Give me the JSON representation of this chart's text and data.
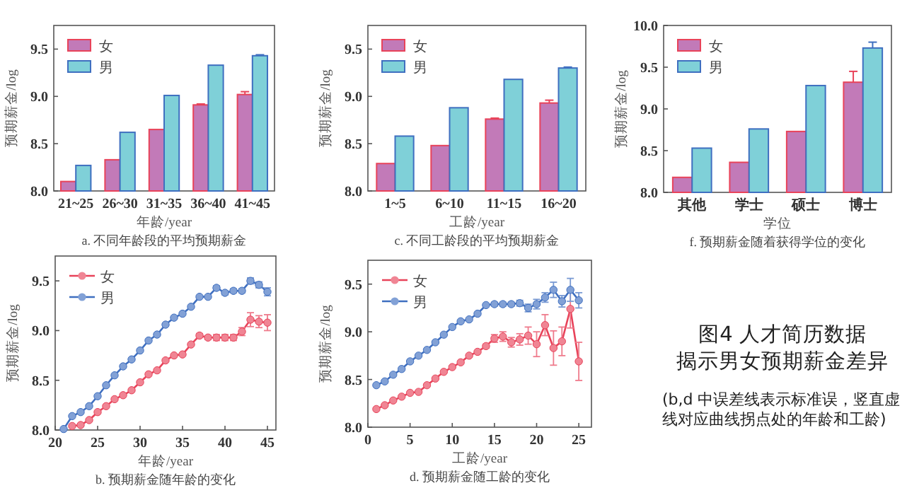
{
  "chart_data": [
    {
      "type": "bar",
      "title": "a. 不同年龄段的平均预期薪金",
      "xlabel": "年龄/year",
      "ylabel": "预期薪金/log",
      "categories": [
        "21~25",
        "26~30",
        "31~35",
        "36~40",
        "41~45"
      ],
      "legend": "top left",
      "ylim": [
        8.0,
        9.75
      ],
      "yticks": [
        {
          "value": 8,
          "label": "8.0"
        },
        {
          "value": 8.5,
          "label": "8.5"
        },
        {
          "value": 9,
          "label": "9.0"
        },
        {
          "value": 9.5,
          "label": "9.5"
        }
      ],
      "series": [
        {
          "name": "女",
          "color": "#c27ab8",
          "values": [
            8.1,
            8.33,
            8.65,
            8.91,
            9.02
          ],
          "errors": [
            null,
            null,
            null,
            0.01,
            0.03
          ]
        },
        {
          "name": "男",
          "color": "#7fd0d8",
          "values": [
            8.27,
            8.62,
            9.01,
            9.33,
            9.43
          ],
          "errors": [
            null,
            null,
            null,
            null,
            0.01
          ]
        }
      ]
    },
    {
      "type": "bar",
      "title": "c. 不同工龄段的平均预期薪金",
      "xlabel": "工龄/year",
      "ylabel": "预期薪金/log",
      "categories": [
        "1~5",
        "6~10",
        "11~15",
        "16~20"
      ],
      "legend": "top left",
      "ylim": [
        8.0,
        9.75
      ],
      "yticks": [
        {
          "value": 8,
          "label": "8.0"
        },
        {
          "value": 8.5,
          "label": "8.5"
        },
        {
          "value": 9,
          "label": "9.0"
        },
        {
          "value": 9.5,
          "label": "9.5"
        }
      ],
      "series": [
        {
          "name": "女",
          "color": "#c27ab8",
          "values": [
            8.29,
            8.48,
            8.76,
            8.93
          ],
          "errors": [
            null,
            null,
            0.01,
            0.03
          ]
        },
        {
          "name": "男",
          "color": "#7fd0d8",
          "values": [
            8.58,
            8.88,
            9.18,
            9.3
          ],
          "errors": [
            null,
            null,
            null,
            0.01
          ]
        }
      ]
    },
    {
      "type": "bar",
      "title": "f. 预期薪金随着获得学位的变化",
      "xlabel": "学位",
      "ylabel": "预期薪金/log",
      "categories": [
        "其他",
        "学士",
        "硕士",
        "博士"
      ],
      "legend": "top left",
      "ylim": [
        8.0,
        10.0
      ],
      "yticks": [
        {
          "value": 8,
          "label": "8.0"
        },
        {
          "value": 8.5,
          "label": "8.5"
        },
        {
          "value": 9,
          "label": "9.0"
        },
        {
          "value": 9.5,
          "label": "9.5"
        },
        {
          "value": 10,
          "label": "10.0"
        }
      ],
      "series": [
        {
          "name": "女",
          "color": "#c27ab8",
          "values": [
            8.18,
            8.36,
            8.73,
            9.32
          ],
          "errors": [
            null,
            null,
            null,
            0.13
          ]
        },
        {
          "name": "男",
          "color": "#7fd0d8",
          "values": [
            8.53,
            8.76,
            9.28,
            9.73
          ],
          "errors": [
            null,
            null,
            null,
            0.07
          ]
        }
      ]
    },
    {
      "type": "line",
      "title": "b. 预期薪金随年龄的变化",
      "xlabel": "年龄/year",
      "ylabel": "预期薪金/log",
      "legend": "top left",
      "marker": "circle",
      "xlim": [
        20,
        46
      ],
      "xticks": [
        20,
        25,
        30,
        35,
        40,
        45
      ],
      "ylim": [
        8.0,
        9.75
      ],
      "yticks": [
        {
          "value": 8,
          "label": "8.0"
        },
        {
          "value": 8.5,
          "label": "8.5"
        },
        {
          "value": 9,
          "label": "9.0"
        },
        {
          "value": 9.5,
          "label": "9.5"
        }
      ],
      "x": [
        21,
        22,
        23,
        24,
        25,
        26,
        27,
        28,
        29,
        30,
        31,
        32,
        33,
        34,
        35,
        36,
        37,
        38,
        39,
        40,
        41,
        42,
        43,
        44,
        45
      ],
      "series": [
        {
          "name": "女",
          "color": "#e8435a",
          "values": [
            null,
            8.04,
            8.05,
            8.1,
            8.18,
            8.24,
            8.31,
            8.35,
            8.4,
            8.48,
            8.56,
            8.6,
            8.7,
            8.75,
            8.76,
            8.86,
            8.95,
            8.93,
            8.93,
            8.93,
            8.93,
            8.99,
            9.11,
            9.09,
            9.08
          ],
          "errors": [
            null,
            null,
            null,
            null,
            null,
            null,
            null,
            null,
            null,
            null,
            null,
            null,
            null,
            null,
            null,
            null,
            0.02,
            0.02,
            0.03,
            0.03,
            0.03,
            0.04,
            0.07,
            0.06,
            0.08
          ]
        },
        {
          "name": "男",
          "color": "#3f6fc0",
          "values": [
            8.01,
            8.14,
            8.18,
            8.24,
            8.34,
            8.45,
            8.55,
            8.64,
            8.71,
            8.8,
            8.9,
            8.96,
            9.06,
            9.13,
            9.17,
            9.24,
            9.34,
            9.34,
            9.43,
            9.38,
            9.4,
            9.4,
            9.5,
            9.46,
            9.39
          ],
          "errors": [
            null,
            null,
            null,
            null,
            null,
            null,
            null,
            null,
            null,
            null,
            null,
            null,
            null,
            null,
            null,
            null,
            null,
            null,
            0.02,
            0.02,
            0.02,
            0.02,
            0.03,
            0.03,
            0.04
          ]
        }
      ]
    },
    {
      "type": "line",
      "title": "d. 预期薪金随工龄的变化",
      "xlabel": "工龄/year",
      "ylabel": "预期薪金/log",
      "legend": "top left",
      "marker": "circle",
      "xlim": [
        0,
        26.5
      ],
      "xticks": [
        0,
        5,
        10,
        15,
        20,
        25
      ],
      "ylim": [
        8.0,
        9.75
      ],
      "yticks": [
        {
          "value": 8,
          "label": "8.0"
        },
        {
          "value": 8.5,
          "label": "8.5"
        },
        {
          "value": 9,
          "label": "9.0"
        },
        {
          "value": 9.5,
          "label": "9.5"
        }
      ],
      "x": [
        1,
        2,
        3,
        4,
        5,
        6,
        7,
        8,
        9,
        10,
        11,
        12,
        13,
        14,
        15,
        16,
        17,
        18,
        19,
        20,
        21,
        22,
        23,
        24,
        25
      ],
      "series": [
        {
          "name": "女",
          "color": "#e8435a",
          "values": [
            8.19,
            8.23,
            8.28,
            8.32,
            8.36,
            8.37,
            8.44,
            8.51,
            8.58,
            8.63,
            8.68,
            8.75,
            8.79,
            8.85,
            8.93,
            8.95,
            8.89,
            8.92,
            8.96,
            8.87,
            9.07,
            8.83,
            8.9,
            9.24,
            8.69
          ],
          "errors": [
            null,
            null,
            null,
            null,
            null,
            null,
            null,
            null,
            null,
            null,
            null,
            null,
            null,
            0.02,
            0.04,
            0.05,
            0.05,
            0.06,
            0.09,
            0.13,
            0.11,
            0.18,
            0.15,
            0.2,
            0.2
          ]
        },
        {
          "name": "男",
          "color": "#3f6fc0",
          "values": [
            8.44,
            8.48,
            8.55,
            8.61,
            8.69,
            8.75,
            8.81,
            8.89,
            8.97,
            9.05,
            9.11,
            9.13,
            9.19,
            9.28,
            9.29,
            9.29,
            9.29,
            9.3,
            9.25,
            9.29,
            9.36,
            9.44,
            9.32,
            9.44,
            9.33
          ],
          "errors": [
            null,
            null,
            null,
            null,
            null,
            null,
            null,
            null,
            null,
            null,
            null,
            null,
            null,
            null,
            0.02,
            0.02,
            0.02,
            0.03,
            0.04,
            0.05,
            0.05,
            0.08,
            0.06,
            0.12,
            0.08
          ]
        }
      ]
    },
    {
      "type": "other",
      "title": "图4 人才简历数据",
      "subtitle": "揭示男女预期薪金差异",
      "annotations": [
        "(b,d 中误差线表示标准误，竖直虚线对应曲线拐点处的年龄和工龄)"
      ]
    }
  ]
}
